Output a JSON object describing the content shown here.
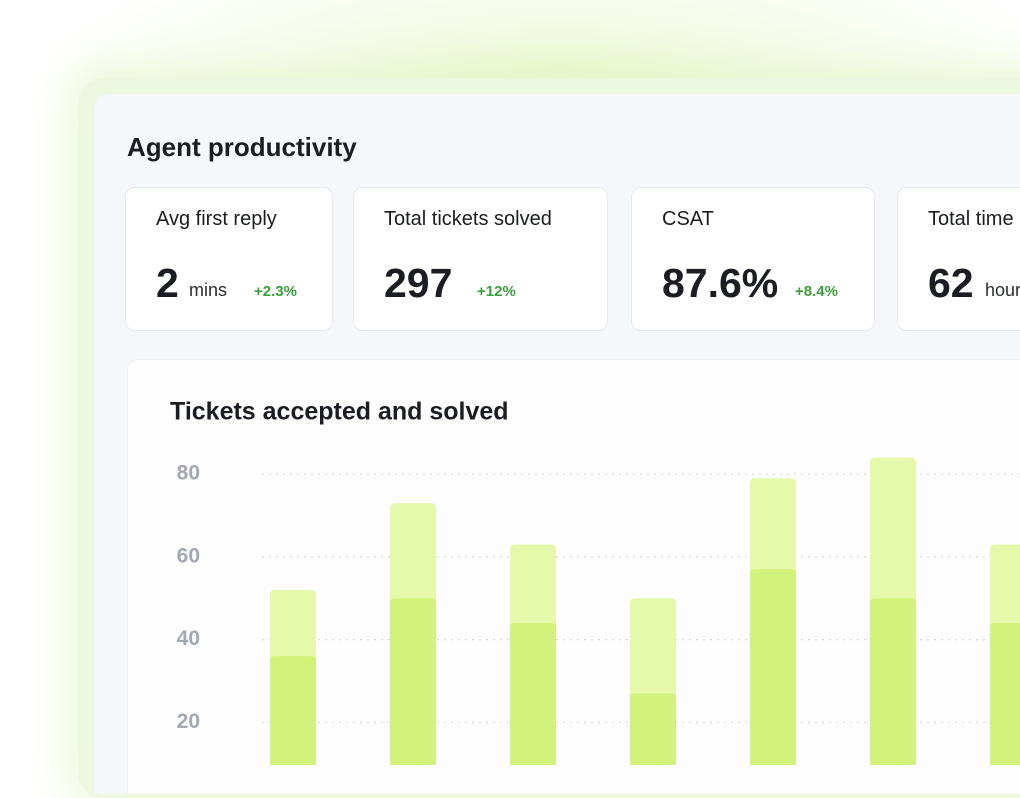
{
  "title": "Agent productivity",
  "cards": [
    {
      "label": "Avg first reply",
      "value": "2",
      "unit": "mins",
      "change": "+2.3%"
    },
    {
      "label": "Total tickets solved",
      "value": "297",
      "change": "+12%"
    },
    {
      "label": "CSAT",
      "value": "87.6%",
      "change": "+8.4%"
    },
    {
      "label": "Total time",
      "value": "62",
      "unit": "hours"
    }
  ],
  "chart_data": {
    "type": "bar",
    "title": "Tickets accepted and solved",
    "categories": [
      null,
      null,
      null,
      null,
      null,
      null,
      null
    ],
    "series": [
      {
        "color": "#e5f8ab",
        "values": [
          52,
          73,
          63,
          50,
          79,
          84,
          63
        ]
      },
      {
        "color": "#d3f27b",
        "values": [
          36,
          50,
          44,
          27,
          57,
          50,
          44
        ]
      }
    ],
    "ylim": [
      0,
      85
    ],
    "yticks": [
      20,
      40,
      60,
      80
    ],
    "grid": true
  }
}
